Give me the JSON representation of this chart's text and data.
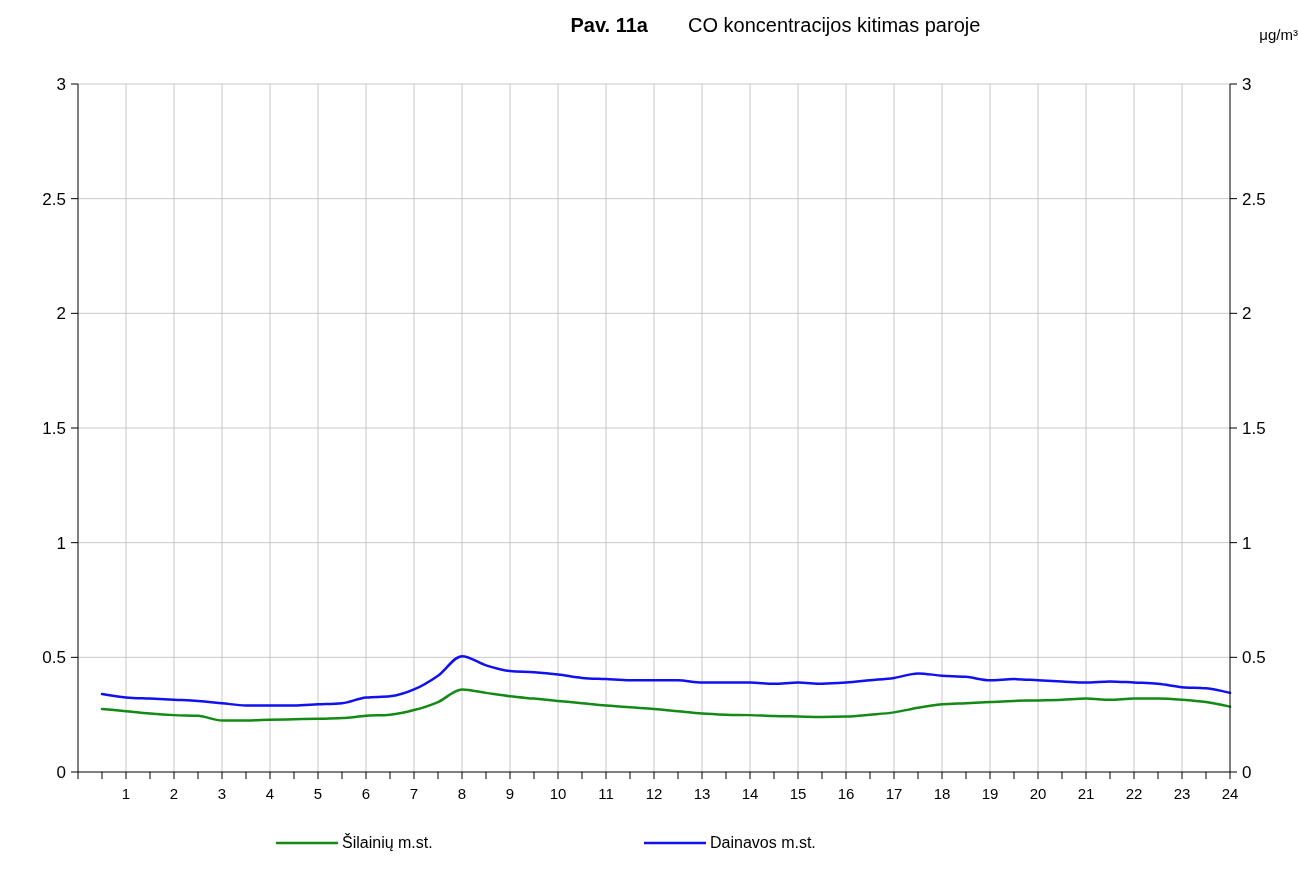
{
  "chart_data": {
    "type": "line",
    "title": "Pav. 11a",
    "subtitle": "CO koncentracijos kitimas paroje",
    "y2label": "μg/m³",
    "x": [
      0.5,
      1,
      1.5,
      2,
      2.5,
      3,
      3.5,
      4,
      4.5,
      5,
      5.5,
      6,
      6.5,
      7,
      7.5,
      8,
      8.5,
      9,
      9.5,
      10,
      10.5,
      11,
      11.5,
      12,
      12.5,
      13,
      13.5,
      14,
      14.5,
      15,
      15.5,
      16,
      16.5,
      17,
      17.5,
      18,
      18.5,
      19,
      19.5,
      20,
      20.5,
      21,
      21.5,
      22,
      22.5,
      23,
      23.5,
      24
    ],
    "series": [
      {
        "name": "Šilainių m.st.",
        "color": "#138a13",
        "values": [
          0.275,
          0.265,
          0.255,
          0.248,
          0.245,
          0.225,
          0.225,
          0.228,
          0.23,
          0.232,
          0.235,
          0.245,
          0.25,
          0.27,
          0.305,
          0.36,
          0.345,
          0.33,
          0.32,
          0.31,
          0.3,
          0.29,
          0.282,
          0.275,
          0.265,
          0.255,
          0.25,
          0.248,
          0.244,
          0.242,
          0.24,
          0.242,
          0.25,
          0.26,
          0.28,
          0.295,
          0.3,
          0.305,
          0.31,
          0.312,
          0.315,
          0.32,
          0.315,
          0.32,
          0.32,
          0.315,
          0.305,
          0.285
        ]
      },
      {
        "name": "Dainavos m.st.",
        "color": "#1010f0",
        "values": [
          0.34,
          0.325,
          0.32,
          0.315,
          0.31,
          0.3,
          0.29,
          0.29,
          0.29,
          0.295,
          0.3,
          0.325,
          0.33,
          0.36,
          0.42,
          0.505,
          0.465,
          0.44,
          0.435,
          0.425,
          0.41,
          0.405,
          0.4,
          0.4,
          0.4,
          0.39,
          0.39,
          0.39,
          0.385,
          0.39,
          0.385,
          0.39,
          0.4,
          0.41,
          0.43,
          0.42,
          0.415,
          0.4,
          0.405,
          0.4,
          0.395,
          0.39,
          0.395,
          0.39,
          0.385,
          0.37,
          0.365,
          0.345
        ]
      }
    ],
    "xlim": [
      0,
      24
    ],
    "xticks": [
      {
        "value": 0,
        "label": null
      },
      {
        "value": 0.5,
        "label": null
      },
      1,
      {
        "value": 1.5,
        "label": null
      },
      2,
      {
        "value": 2.5,
        "label": null
      },
      3,
      {
        "value": 3.5,
        "label": null
      },
      4,
      {
        "value": 4.5,
        "label": null
      },
      5,
      {
        "value": 5.5,
        "label": null
      },
      6,
      {
        "value": 6.5,
        "label": null
      },
      7,
      {
        "value": 7.5,
        "label": null
      },
      8,
      {
        "value": 8.5,
        "label": null
      },
      9,
      {
        "value": 9.5,
        "label": null
      },
      10,
      {
        "value": 10.5,
        "label": null
      },
      11,
      {
        "value": 11.5,
        "label": null
      },
      12,
      {
        "value": 12.5,
        "label": null
      },
      13,
      {
        "value": 13.5,
        "label": null
      },
      14,
      {
        "value": 14.5,
        "label": null
      },
      15,
      {
        "value": 15.5,
        "label": null
      },
      16,
      {
        "value": 16.5,
        "label": null
      },
      17,
      {
        "value": 17.5,
        "label": null
      },
      18,
      {
        "value": 18.5,
        "label": null
      },
      19,
      {
        "value": 19.5,
        "label": null
      },
      20,
      {
        "value": 20.5,
        "label": null
      },
      21,
      {
        "value": 21.5,
        "label": null
      },
      22,
      {
        "value": 22.5,
        "label": null
      },
      23,
      {
        "value": 23.5,
        "label": null
      },
      24
    ],
    "ylim": [
      0,
      3
    ],
    "yticks": [
      0,
      0.5,
      1,
      1.5,
      2,
      2.5,
      3
    ],
    "y2lim": [
      0,
      3
    ],
    "y2ticks": [
      0,
      0.5,
      1,
      1.5,
      2,
      2.5,
      3
    ],
    "grid": true,
    "legend": "bottom",
    "marker": "none",
    "line_style": "solid"
  }
}
